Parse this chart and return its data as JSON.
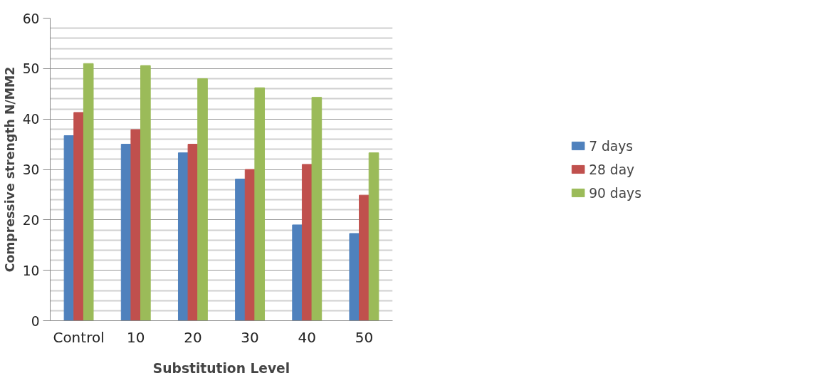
{
  "chart_data": {
    "type": "bar",
    "xlabel": "Substitution Level",
    "ylabel": "Compressive strength N/MM2",
    "categories": [
      "Control",
      "10",
      "20",
      "30",
      "40",
      "50"
    ],
    "series": [
      {
        "name": "7 days",
        "color": "#4f81bd",
        "values": [
          36.7,
          35.0,
          33.3,
          28.1,
          19.0,
          17.3
        ]
      },
      {
        "name": "28 day",
        "color": "#c0504d",
        "values": [
          41.3,
          37.9,
          35.0,
          30.0,
          31.0,
          24.9
        ]
      },
      {
        "name": "90 days",
        "color": "#9bbb59",
        "values": [
          51.0,
          50.6,
          48.0,
          46.2,
          44.3,
          33.3
        ]
      }
    ],
    "ylim": [
      0,
      60
    ],
    "yticks": [
      0,
      10,
      20,
      30,
      40,
      50,
      60
    ],
    "grid": "y",
    "legend": "right"
  }
}
